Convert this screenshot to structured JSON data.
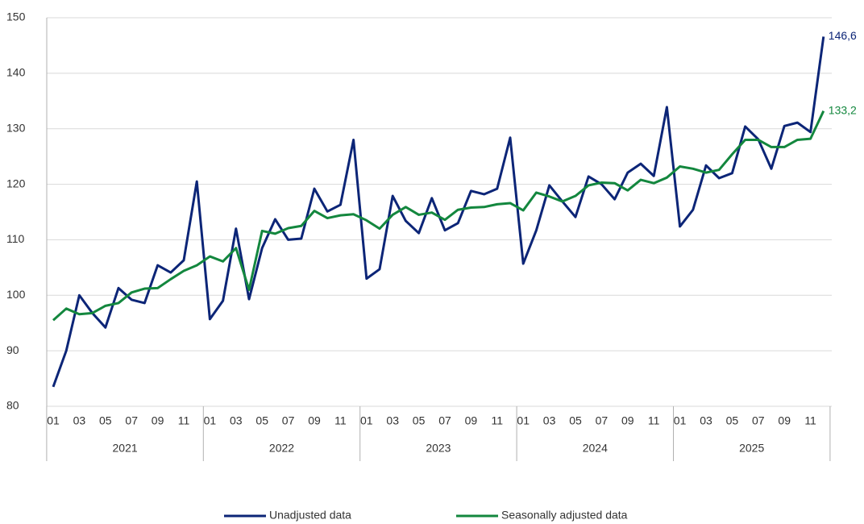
{
  "chart_data": {
    "type": "line",
    "categories": [
      "01",
      null,
      "03",
      null,
      "05",
      null,
      "07",
      null,
      "09",
      null,
      "11",
      null,
      "01",
      null,
      "03",
      null,
      "05",
      null,
      "07",
      null,
      "09",
      null,
      "11",
      null,
      "01",
      null,
      "03",
      null,
      "05",
      null,
      "07",
      null,
      "09",
      null,
      "11",
      null,
      "01",
      null,
      "03",
      null,
      "05",
      null,
      "07",
      null,
      "09",
      null,
      "11",
      null,
      "01",
      null,
      "03",
      null,
      "05",
      null,
      "07",
      null,
      "09",
      null,
      "11",
      null
    ],
    "groups": [
      "2021",
      "2022",
      "2023",
      "2024",
      "2025"
    ],
    "series": [
      {
        "name": "Unadjusted data",
        "color": "#0c2577",
        "values": [
          83.5,
          90,
          100,
          96.8,
          94.2,
          101.3,
          99.2,
          98.6,
          105.4,
          104.1,
          106.3,
          120.5,
          95.7,
          99,
          112,
          99.3,
          108.5,
          113.7,
          110,
          110.2,
          119.2,
          115.1,
          116.3,
          128,
          103,
          104.7,
          117.9,
          113.4,
          111.2,
          117.5,
          111.7,
          113,
          118.8,
          118.2,
          119.2,
          128.4,
          105.7,
          111.7,
          119.8,
          116.9,
          114.1,
          121.4,
          120,
          117.3,
          122.1,
          123.7,
          121.5,
          133.9,
          112.4,
          115.4,
          123.4,
          121.1,
          122,
          130.4,
          128.1,
          122.8,
          130.5,
          131.1,
          129.4,
          146.6
        ],
        "value_labels": [
          null,
          null,
          null,
          null,
          null,
          null,
          null,
          null,
          null,
          null,
          null,
          null,
          null,
          null,
          null,
          null,
          null,
          null,
          null,
          null,
          null,
          null,
          null,
          null,
          null,
          null,
          null,
          null,
          null,
          null,
          null,
          null,
          null,
          null,
          null,
          null,
          null,
          null,
          null,
          null,
          null,
          null,
          null,
          null,
          null,
          null,
          null,
          null,
          null,
          null,
          null,
          null,
          null,
          null,
          null,
          null,
          null,
          null,
          null,
          "146,6"
        ]
      },
      {
        "name": "Seasonally adjusted data",
        "color": "#13873e",
        "values": [
          95.5,
          97.6,
          96.6,
          96.8,
          98.1,
          98.6,
          100.5,
          101.2,
          101.3,
          102.9,
          104.4,
          105.4,
          107,
          106.1,
          108.5,
          101,
          111.6,
          111.1,
          112.1,
          112.5,
          115.2,
          113.9,
          114.4,
          114.6,
          113.5,
          112,
          114.5,
          115.9,
          114.5,
          114.9,
          113.6,
          115.4,
          115.8,
          115.9,
          116.4,
          116.6,
          115.3,
          118.5,
          117.8,
          116.9,
          117.9,
          119.8,
          120.3,
          120.2,
          118.9,
          120.8,
          120.2,
          121.2,
          123.2,
          122.8,
          122.1,
          122.6,
          125.4,
          128,
          128,
          126.7,
          126.7,
          128,
          128.2,
          133.2
        ],
        "value_labels": [
          null,
          null,
          null,
          null,
          null,
          null,
          null,
          null,
          null,
          null,
          null,
          null,
          null,
          null,
          null,
          null,
          null,
          null,
          null,
          null,
          null,
          null,
          null,
          null,
          null,
          null,
          null,
          null,
          null,
          null,
          null,
          null,
          null,
          null,
          null,
          null,
          null,
          null,
          null,
          null,
          null,
          null,
          null,
          null,
          null,
          null,
          null,
          null,
          null,
          null,
          null,
          null,
          null,
          null,
          null,
          null,
          null,
          null,
          null,
          "133,2"
        ]
      }
    ],
    "ylim": [
      80,
      150
    ],
    "yticks": [
      80,
      90,
      100,
      110,
      120,
      130,
      140,
      150
    ],
    "grid": true,
    "legend": "bottom"
  }
}
